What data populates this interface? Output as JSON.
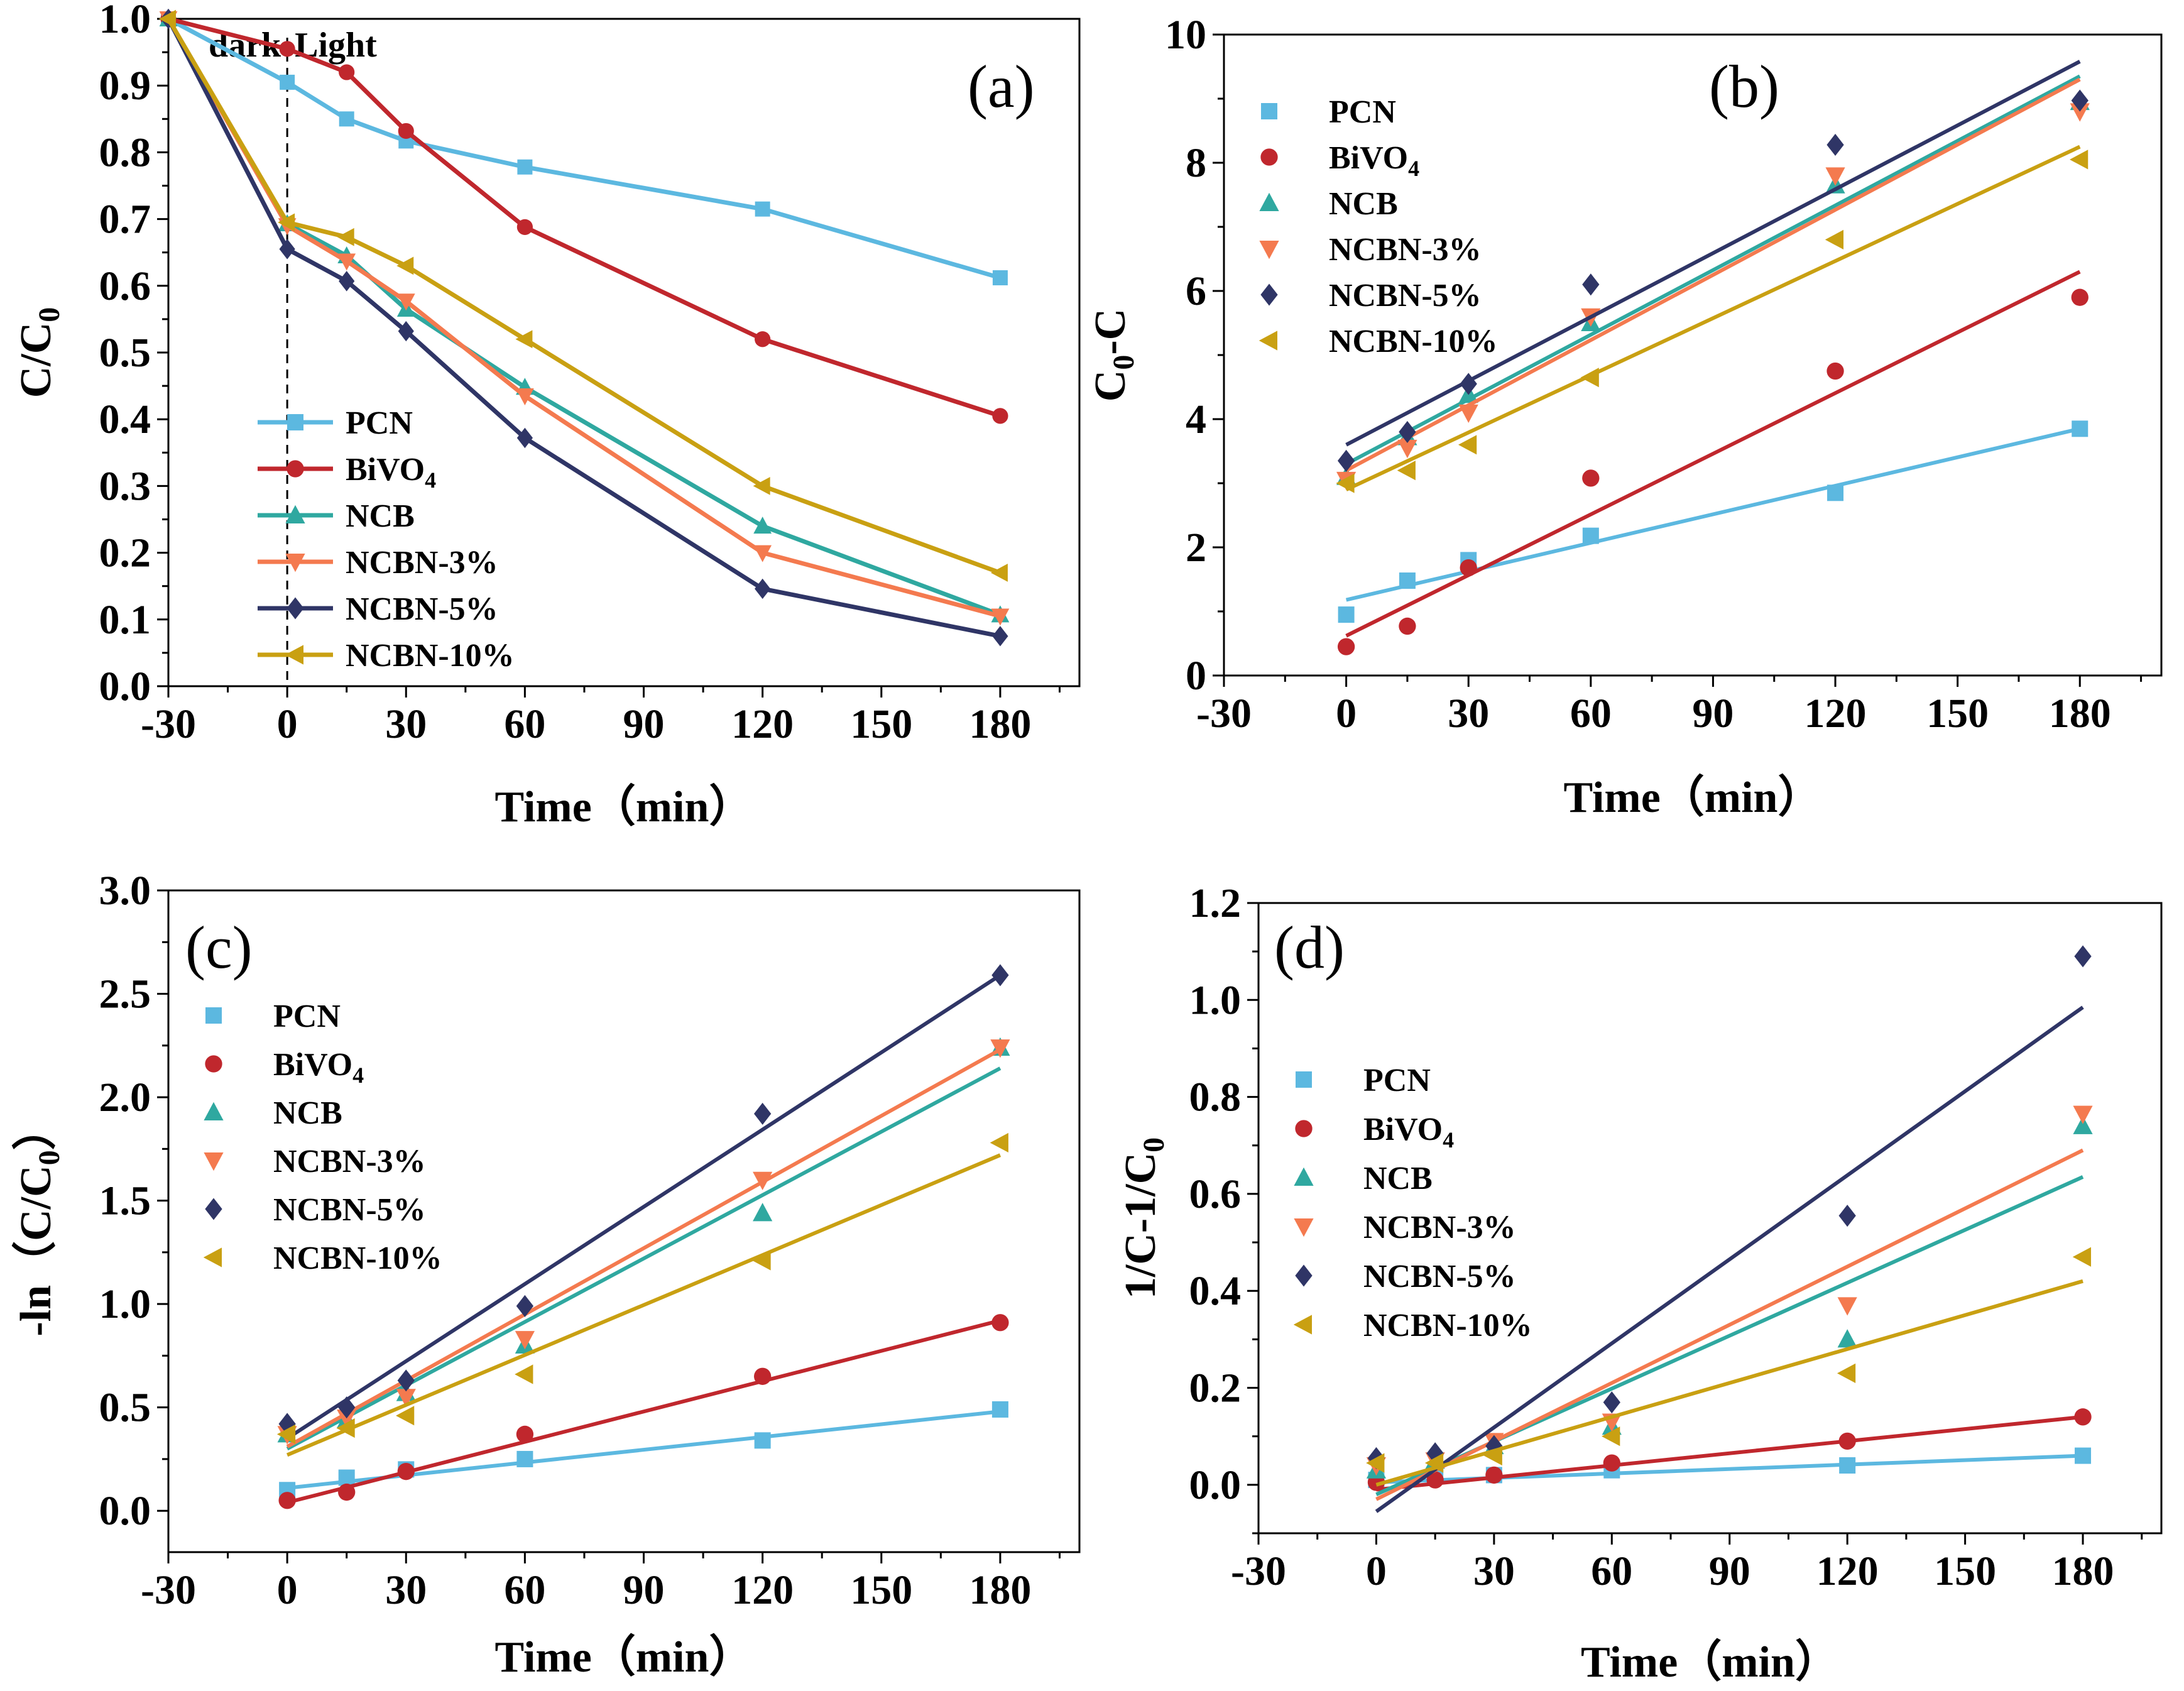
{
  "colors": {
    "PCN": "#5cb8e0",
    "BiVO4": "#c0272d",
    "NCB": "#2fa8a0",
    "NCBN-3%": "#f47a4f",
    "NCBN-5%": "#2f3566",
    "NCBN-10%": "#c9a012"
  },
  "chart_data": [
    {
      "id": "a",
      "type": "line",
      "panel_label": "(a)",
      "xlabel": "Time（min）",
      "ylabel": "C/C0",
      "ylabel_main": "C/C",
      "ylabel_sub": "0",
      "xlim": [
        -30,
        200
      ],
      "ylim": [
        0,
        1.0
      ],
      "xticks": [
        -30,
        0,
        30,
        60,
        90,
        120,
        150,
        180
      ],
      "yticks": [
        0.0,
        0.1,
        0.2,
        0.3,
        0.4,
        0.5,
        0.6,
        0.7,
        0.8,
        0.9,
        1.0
      ],
      "tick_labels_x": [
        "-30",
        "0",
        "30",
        "60",
        "90",
        "120",
        "150",
        "180"
      ],
      "tick_labels_y": [
        "0.0",
        "0.1",
        "0.2",
        "0.3",
        "0.4",
        "0.5",
        "0.6",
        "0.7",
        "0.8",
        "0.9",
        "1.0"
      ],
      "annotation_dark": "dark",
      "annotation_light": "Light",
      "legend_position": "bottom-left",
      "x": [
        -30,
        0,
        15,
        30,
        60,
        120,
        180
      ],
      "series": [
        {
          "name": "PCN",
          "label": "PCN",
          "marker": "square",
          "values": [
            1.0,
            0.905,
            0.85,
            0.817,
            0.778,
            0.715,
            0.612
          ]
        },
        {
          "name": "BiVO4",
          "label": "BiVO",
          "label_sub": "4",
          "marker": "circle",
          "values": [
            1.0,
            0.955,
            0.92,
            0.832,
            0.688,
            0.52,
            0.405
          ]
        },
        {
          "name": "NCB",
          "label": "NCB",
          "marker": "triangle-up",
          "values": [
            1.0,
            0.693,
            0.645,
            0.565,
            0.448,
            0.24,
            0.107
          ]
        },
        {
          "name": "NCBN-3%",
          "label": "NCBN-3%",
          "marker": "triangle-down",
          "values": [
            1.0,
            0.69,
            0.637,
            0.577,
            0.435,
            0.2,
            0.105
          ]
        },
        {
          "name": "NCBN-5%",
          "label": "NCBN-5%",
          "marker": "diamond",
          "values": [
            1.0,
            0.655,
            0.607,
            0.532,
            0.372,
            0.146,
            0.075
          ]
        },
        {
          "name": "NCBN-10%",
          "label": "NCBN-10%",
          "marker": "triangle-left",
          "values": [
            1.0,
            0.695,
            0.673,
            0.63,
            0.52,
            0.3,
            0.17
          ]
        }
      ]
    },
    {
      "id": "b",
      "type": "scatter",
      "panel_label": "(b)",
      "xlabel": "Time（min）",
      "ylabel": "C0-C",
      "ylabel_main": "C",
      "ylabel_sub": "0",
      "ylabel_tail": "-C",
      "xlim": [
        -30,
        200
      ],
      "ylim": [
        0,
        10
      ],
      "xticks": [
        -30,
        0,
        30,
        60,
        90,
        120,
        150,
        180
      ],
      "yticks": [
        0,
        2,
        4,
        6,
        8,
        10
      ],
      "tick_labels_x": [
        "-30",
        "0",
        "30",
        "60",
        "90",
        "120",
        "150",
        "180"
      ],
      "tick_labels_y": [
        "0",
        "2",
        "4",
        "6",
        "8",
        "10"
      ],
      "legend_position": "top-left",
      "x": [
        0,
        15,
        30,
        60,
        120,
        180
      ],
      "series": [
        {
          "name": "PCN",
          "label": "PCN",
          "marker": "square",
          "values": [
            0.95,
            1.48,
            1.8,
            2.18,
            2.85,
            3.85
          ],
          "fit": [
            1.18,
            3.85
          ]
        },
        {
          "name": "BiVO4",
          "label": "BiVO",
          "label_sub": "4",
          "marker": "circle",
          "values": [
            0.45,
            0.77,
            1.68,
            3.08,
            4.75,
            5.9
          ],
          "fit": [
            0.62,
            6.3
          ]
        },
        {
          "name": "NCB",
          "label": "NCB",
          "marker": "triangle-up",
          "values": [
            3.1,
            3.72,
            4.38,
            5.5,
            7.65,
            8.95
          ],
          "fit": [
            3.3,
            9.35
          ]
        },
        {
          "name": "NCBN-3%",
          "label": "NCBN-3%",
          "marker": "triangle-down",
          "values": [
            3.05,
            3.55,
            4.1,
            5.6,
            7.8,
            8.8
          ],
          "fit": [
            3.2,
            9.3
          ]
        },
        {
          "name": "NCBN-5%",
          "label": "NCBN-5%",
          "marker": "diamond",
          "values": [
            3.35,
            3.8,
            4.55,
            6.1,
            8.28,
            8.97
          ],
          "fit": [
            3.6,
            9.58
          ]
        },
        {
          "name": "NCBN-10%",
          "label": "NCBN-10%",
          "marker": "triangle-left",
          "values": [
            3.0,
            3.2,
            3.6,
            4.65,
            6.8,
            8.05
          ],
          "fit": [
            2.9,
            8.25
          ]
        }
      ]
    },
    {
      "id": "c",
      "type": "scatter",
      "panel_label": "(c)",
      "xlabel": "Time（min）",
      "ylabel": "-ln（C/C0）",
      "ylabel_main": "-ln（C/C",
      "ylabel_sub": "0",
      "ylabel_tail": "）",
      "xlim": [
        -30,
        200
      ],
      "ylim": [
        -0.2,
        3.0
      ],
      "xticks": [
        -30,
        0,
        30,
        60,
        90,
        120,
        150,
        180
      ],
      "yticks": [
        0.0,
        0.5,
        1.0,
        1.5,
        2.0,
        2.5,
        3.0
      ],
      "tick_labels_x": [
        "-30",
        "0",
        "30",
        "60",
        "90",
        "120",
        "150",
        "180"
      ],
      "tick_labels_y": [
        "0.0",
        "0.5",
        "1.0",
        "1.5",
        "2.0",
        "2.5",
        "3.0"
      ],
      "legend_position": "top-left",
      "x": [
        0,
        15,
        30,
        60,
        120,
        180
      ],
      "series": [
        {
          "name": "PCN",
          "label": "PCN",
          "marker": "square",
          "values": [
            0.1,
            0.16,
            0.2,
            0.25,
            0.34,
            0.49
          ],
          "fit": [
            0.11,
            0.48
          ]
        },
        {
          "name": "BiVO4",
          "label": "BiVO",
          "label_sub": "4",
          "marker": "circle",
          "values": [
            0.05,
            0.09,
            0.19,
            0.37,
            0.65,
            0.91
          ],
          "fit": [
            0.04,
            0.92
          ]
        },
        {
          "name": "NCB",
          "label": "NCB",
          "marker": "triangle-up",
          "values": [
            0.37,
            0.44,
            0.57,
            0.8,
            1.44,
            2.24
          ],
          "fit": [
            0.3,
            2.14
          ]
        },
        {
          "name": "NCBN-3%",
          "label": "NCBN-3%",
          "marker": "triangle-down",
          "values": [
            0.37,
            0.45,
            0.55,
            0.83,
            1.6,
            2.24
          ],
          "fit": [
            0.31,
            2.23
          ]
        },
        {
          "name": "NCBN-5%",
          "label": "NCBN-5%",
          "marker": "diamond",
          "values": [
            0.42,
            0.5,
            0.63,
            0.99,
            1.92,
            2.59
          ],
          "fit": [
            0.35,
            2.59
          ]
        },
        {
          "name": "NCBN-10%",
          "label": "NCBN-10%",
          "marker": "triangle-left",
          "values": [
            0.37,
            0.4,
            0.46,
            0.66,
            1.21,
            1.78
          ],
          "fit": [
            0.27,
            1.72
          ]
        }
      ]
    },
    {
      "id": "d",
      "type": "scatter",
      "panel_label": "(d)",
      "xlabel": "Time（min）",
      "ylabel": "1/C-1/C0",
      "ylabel_main": "1/C-1/C",
      "ylabel_sub": "0",
      "xlim": [
        -30,
        200
      ],
      "ylim": [
        -0.1,
        1.2
      ],
      "xticks": [
        -30,
        0,
        30,
        60,
        90,
        120,
        150,
        180
      ],
      "yticks": [
        0.0,
        0.2,
        0.4,
        0.6,
        0.8,
        1.0,
        1.2
      ],
      "tick_labels_x": [
        "-30",
        "0",
        "30",
        "60",
        "90",
        "120",
        "150",
        "180"
      ],
      "tick_labels_y": [
        "0.0",
        "0.2",
        "0.4",
        "0.6",
        "0.8",
        "1.0",
        "1.2"
      ],
      "legend_position": "top-left",
      "x": [
        0,
        15,
        30,
        60,
        120,
        180
      ],
      "series": [
        {
          "name": "PCN",
          "label": "PCN",
          "marker": "square",
          "values": [
            0.01,
            0.02,
            0.02,
            0.03,
            0.04,
            0.06
          ],
          "fit": [
            0.005,
            0.06
          ]
        },
        {
          "name": "BiVO4",
          "label": "BiVO",
          "label_sub": "4",
          "marker": "circle",
          "values": [
            0.005,
            0.01,
            0.02,
            0.045,
            0.09,
            0.14
          ],
          "fit": [
            -0.01,
            0.14
          ]
        },
        {
          "name": "NCB",
          "label": "NCB",
          "marker": "triangle-up",
          "values": [
            0.03,
            0.05,
            0.08,
            0.12,
            0.3,
            0.74
          ],
          "fit": [
            -0.02,
            0.635
          ]
        },
        {
          "name": "NCBN-3%",
          "label": "NCBN-3%",
          "marker": "triangle-down",
          "values": [
            0.04,
            0.05,
            0.09,
            0.13,
            0.37,
            0.765
          ],
          "fit": [
            -0.03,
            0.69
          ]
        },
        {
          "name": "NCBN-5%",
          "label": "NCBN-5%",
          "marker": "diamond",
          "values": [
            0.055,
            0.065,
            0.08,
            0.17,
            0.555,
            1.09
          ],
          "fit": [
            -0.055,
            0.985
          ]
        },
        {
          "name": "NCBN-10%",
          "label": "NCBN-10%",
          "marker": "triangle-left",
          "values": [
            0.045,
            0.045,
            0.06,
            0.1,
            0.23,
            0.47
          ],
          "fit": [
            0.0,
            0.42
          ]
        }
      ]
    }
  ]
}
